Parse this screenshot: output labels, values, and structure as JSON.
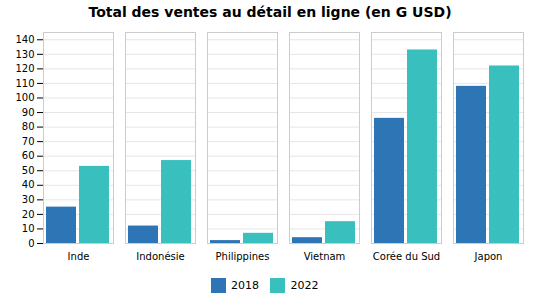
{
  "chart_data": {
    "type": "bar",
    "title": "Total des ventes au détail en ligne (en G USD)",
    "categories": [
      "Inde",
      "Indonésie",
      "Philippines",
      "Vietnam",
      "Corée du Sud",
      "Japon"
    ],
    "series": [
      {
        "name": "2018",
        "color": "#2E75B6",
        "values": [
          25,
          12,
          2,
          4,
          86,
          108
        ]
      },
      {
        "name": "2022",
        "color": "#3ABFBF",
        "values": [
          53,
          57,
          7,
          15,
          133,
          122
        ]
      }
    ],
    "ylim": [
      0,
      145
    ],
    "yticks": [
      0,
      10,
      20,
      30,
      40,
      50,
      60,
      70,
      80,
      90,
      100,
      110,
      120,
      130,
      140
    ],
    "grid": true,
    "legend": "bottom"
  }
}
